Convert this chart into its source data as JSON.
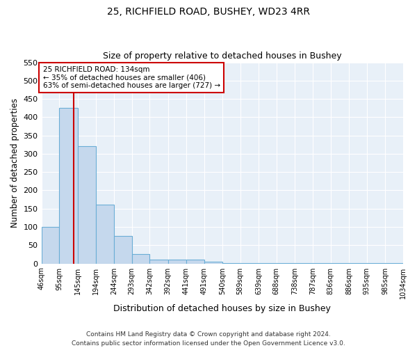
{
  "title1": "25, RICHFIELD ROAD, BUSHEY, WD23 4RR",
  "title2": "Size of property relative to detached houses in Bushey",
  "xlabel": "Distribution of detached houses by size in Bushey",
  "ylabel": "Number of detached properties",
  "footer1": "Contains HM Land Registry data © Crown copyright and database right 2024.",
  "footer2": "Contains public sector information licensed under the Open Government Licence v3.0.",
  "bin_edges": [
    46,
    95,
    145,
    194,
    244,
    293,
    342,
    392,
    441,
    491,
    540,
    589,
    639,
    688,
    738,
    787,
    836,
    886,
    935,
    985,
    1034
  ],
  "bin_counts": [
    100,
    425,
    320,
    160,
    75,
    25,
    10,
    10,
    10,
    5,
    2,
    2,
    2,
    2,
    2,
    2,
    2,
    2,
    2,
    2
  ],
  "bar_color": "#c5d8ed",
  "bar_edge_color": "#6aaed6",
  "bg_color": "#e8f0f8",
  "grid_color": "#ffffff",
  "vline_x": 134,
  "vline_color": "#cc0000",
  "annotation_line1": "25 RICHFIELD ROAD: 134sqm",
  "annotation_line2": "← 35% of detached houses are smaller (406)",
  "annotation_line3": "63% of semi-detached houses are larger (727) →",
  "annotation_box_color": "#cc0000",
  "ylim": [
    0,
    550
  ],
  "yticks": [
    0,
    50,
    100,
    150,
    200,
    250,
    300,
    350,
    400,
    450,
    500,
    550
  ]
}
